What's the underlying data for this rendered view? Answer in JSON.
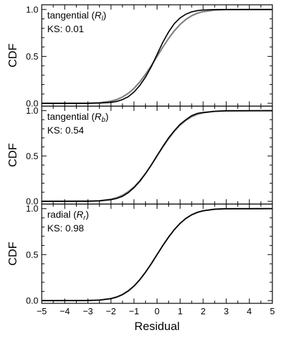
{
  "chart_data": [
    {
      "type": "line",
      "annotation_main": "tangential (",
      "annotation_symbol": "R",
      "annotation_sub": "l",
      "annotation_close": ")",
      "annotation_ks": "KS: 0.01",
      "ylabel": "CDF",
      "xlabel": "",
      "xlim": [
        -5,
        5
      ],
      "ylim": [
        -0.03,
        1.05
      ],
      "yticks": [
        0.0,
        0.5,
        1.0
      ],
      "ytick_labels": [
        "0.0",
        "0.5",
        "1.0"
      ],
      "series": [
        {
          "color": "#808080",
          "x": [
            -5,
            -3,
            -2.5,
            -2,
            -1.75,
            -1.5,
            -1.25,
            -1,
            -0.75,
            -0.5,
            -0.25,
            0,
            0.25,
            0.5,
            0.75,
            1,
            1.25,
            1.5,
            1.75,
            2,
            2.5,
            3,
            5
          ],
          "y": [
            0,
            0.001,
            0.006,
            0.023,
            0.04,
            0.067,
            0.106,
            0.159,
            0.227,
            0.309,
            0.401,
            0.5,
            0.599,
            0.691,
            0.773,
            0.841,
            0.894,
            0.933,
            0.96,
            0.977,
            0.994,
            0.999,
            1
          ]
        },
        {
          "color": "#000000",
          "x": [
            -5,
            -3,
            -2.5,
            -2,
            -1.75,
            -1.5,
            -1.25,
            -1,
            -0.75,
            -0.5,
            -0.25,
            0,
            0.25,
            0.5,
            0.75,
            1,
            1.25,
            1.5,
            1.75,
            2,
            2.5,
            3,
            5
          ],
          "y": [
            0,
            0,
            0.003,
            0.01,
            0.02,
            0.04,
            0.07,
            0.12,
            0.19,
            0.28,
            0.39,
            0.52,
            0.65,
            0.76,
            0.85,
            0.91,
            0.95,
            0.975,
            0.988,
            0.995,
            0.999,
            1,
            1
          ]
        }
      ]
    },
    {
      "type": "line",
      "annotation_main": "tangential (",
      "annotation_symbol": "R",
      "annotation_sub": "b",
      "annotation_close": ")",
      "annotation_ks": "KS: 0.54",
      "ylabel": "CDF",
      "xlabel": "",
      "xlim": [
        -5,
        5
      ],
      "ylim": [
        -0.03,
        1.05
      ],
      "yticks": [
        0.0,
        0.5,
        1.0
      ],
      "ytick_labels": [
        "0.0",
        "0.5",
        "1.0"
      ],
      "series": [
        {
          "color": "#808080",
          "x": [
            -5,
            -3,
            -2.5,
            -2,
            -1.75,
            -1.5,
            -1.25,
            -1,
            -0.75,
            -0.5,
            -0.25,
            0,
            0.25,
            0.5,
            0.75,
            1,
            1.25,
            1.5,
            1.75,
            2,
            2.5,
            3,
            5
          ],
          "y": [
            0,
            0.001,
            0.006,
            0.023,
            0.04,
            0.067,
            0.106,
            0.159,
            0.227,
            0.309,
            0.401,
            0.5,
            0.599,
            0.691,
            0.773,
            0.841,
            0.894,
            0.933,
            0.96,
            0.977,
            0.994,
            0.999,
            1
          ]
        },
        {
          "color": "#000000",
          "x": [
            -5,
            -3,
            -2.5,
            -2,
            -1.75,
            -1.5,
            -1.25,
            -1,
            -0.75,
            -0.5,
            -0.25,
            0,
            0.25,
            0.5,
            0.75,
            1,
            1.25,
            1.5,
            1.75,
            2,
            2.5,
            3,
            5
          ],
          "y": [
            0,
            0.002,
            0.005,
            0.018,
            0.032,
            0.055,
            0.095,
            0.15,
            0.22,
            0.305,
            0.4,
            0.505,
            0.605,
            0.7,
            0.78,
            0.85,
            0.9,
            0.945,
            0.97,
            0.98,
            0.992,
            0.998,
            1
          ]
        }
      ]
    },
    {
      "type": "line",
      "annotation_main": "radial (",
      "annotation_symbol": "R",
      "annotation_sub": "r",
      "annotation_close": ")",
      "annotation_ks": "KS: 0.98",
      "ylabel": "CDF",
      "xlabel": "Residual",
      "xlim": [
        -5,
        5
      ],
      "ylim": [
        -0.03,
        1.05
      ],
      "yticks": [
        0.0,
        0.5,
        1.0
      ],
      "ytick_labels": [
        "0.0",
        "0.5",
        "1.0"
      ],
      "xticks": [
        -5,
        -4,
        -3,
        -2,
        -1,
        0,
        1,
        2,
        3,
        4,
        5
      ],
      "xtick_labels": [
        "−5",
        "−4",
        "−3",
        "−2",
        "−1",
        "0",
        "1",
        "2",
        "3",
        "4",
        "5"
      ],
      "series": [
        {
          "color": "#808080",
          "x": [
            -5,
            -3,
            -2.5,
            -2,
            -1.75,
            -1.5,
            -1.25,
            -1,
            -0.75,
            -0.5,
            -0.25,
            0,
            0.25,
            0.5,
            0.75,
            1,
            1.25,
            1.5,
            1.75,
            2,
            2.5,
            3,
            5
          ],
          "y": [
            0,
            0.001,
            0.006,
            0.023,
            0.04,
            0.067,
            0.106,
            0.159,
            0.227,
            0.309,
            0.401,
            0.5,
            0.599,
            0.691,
            0.773,
            0.841,
            0.894,
            0.933,
            0.96,
            0.977,
            0.994,
            0.999,
            1
          ]
        },
        {
          "color": "#000000",
          "x": [
            -5,
            -3,
            -2.5,
            -2,
            -1.75,
            -1.5,
            -1.25,
            -1,
            -0.75,
            -0.5,
            -0.25,
            0,
            0.25,
            0.5,
            0.75,
            1,
            1.25,
            1.5,
            1.75,
            2,
            2.5,
            3,
            5
          ],
          "y": [
            0,
            0.001,
            0.005,
            0.02,
            0.037,
            0.064,
            0.104,
            0.157,
            0.226,
            0.309,
            0.401,
            0.5,
            0.599,
            0.69,
            0.772,
            0.84,
            0.893,
            0.933,
            0.96,
            0.977,
            0.994,
            0.999,
            1
          ]
        }
      ]
    }
  ]
}
